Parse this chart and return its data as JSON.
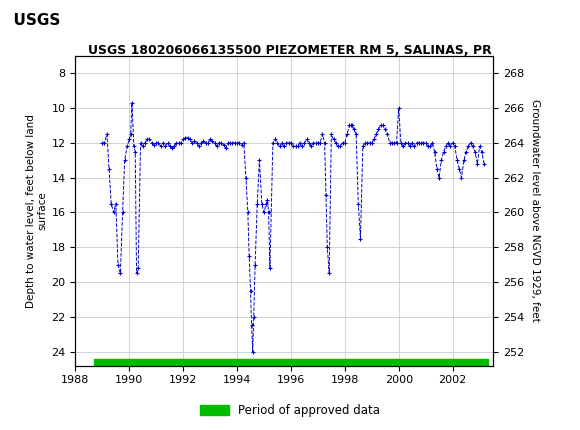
{
  "title": "USGS 180206066135500 PIEZOMETER RM 5, SALINAS, PR",
  "ylabel_left": "Depth to water level, feet below land\nsurface",
  "ylabel_right": "Groundwater level above NGVD 1929, feet",
  "xlim": [
    1988,
    2003.5
  ],
  "ylim_left": [
    24.8,
    7.0
  ],
  "ylim_right": [
    251.2,
    269.0
  ],
  "xticks": [
    1988,
    1990,
    1992,
    1994,
    1996,
    1998,
    2000,
    2002
  ],
  "yticks_left": [
    8,
    10,
    12,
    14,
    16,
    18,
    20,
    22,
    24
  ],
  "yticks_right": [
    268,
    266,
    264,
    262,
    260,
    258,
    256,
    254,
    252
  ],
  "header_color": "#1a6b3c",
  "grid_color": "#cccccc",
  "line_color": "#0000cc",
  "approved_bar_color": "#00bb00",
  "legend_label": "Period of approved data",
  "background_color": "#ffffff",
  "data_x": [
    1989.0,
    1989.08,
    1989.17,
    1989.25,
    1989.33,
    1989.42,
    1989.5,
    1989.58,
    1989.67,
    1989.75,
    1989.83,
    1989.92,
    1990.0,
    1990.05,
    1990.1,
    1990.17,
    1990.22,
    1990.27,
    1990.33,
    1990.42,
    1990.5,
    1990.58,
    1990.67,
    1990.75,
    1990.83,
    1990.92,
    1991.0,
    1991.08,
    1991.17,
    1991.25,
    1991.33,
    1991.42,
    1991.5,
    1991.58,
    1991.67,
    1991.75,
    1991.83,
    1991.92,
    1992.0,
    1992.08,
    1992.17,
    1992.25,
    1992.33,
    1992.42,
    1992.5,
    1992.58,
    1992.67,
    1992.75,
    1992.83,
    1992.92,
    1993.0,
    1993.08,
    1993.17,
    1993.25,
    1993.33,
    1993.42,
    1993.5,
    1993.58,
    1993.67,
    1993.75,
    1993.83,
    1993.92,
    1994.0,
    1994.08,
    1994.17,
    1994.25,
    1994.33,
    1994.4,
    1994.45,
    1994.5,
    1994.54,
    1994.58,
    1994.62,
    1994.67,
    1994.75,
    1994.83,
    1994.92,
    1995.0,
    1995.08,
    1995.13,
    1995.17,
    1995.22,
    1995.33,
    1995.42,
    1995.5,
    1995.58,
    1995.67,
    1995.75,
    1995.83,
    1995.92,
    1996.0,
    1996.08,
    1996.17,
    1996.25,
    1996.33,
    1996.42,
    1996.5,
    1996.58,
    1996.67,
    1996.75,
    1996.83,
    1996.92,
    1997.0,
    1997.08,
    1997.17,
    1997.25,
    1997.3,
    1997.35,
    1997.42,
    1997.5,
    1997.58,
    1997.67,
    1997.75,
    1997.83,
    1997.92,
    1998.0,
    1998.08,
    1998.17,
    1998.22,
    1998.27,
    1998.33,
    1998.42,
    1998.5,
    1998.58,
    1998.67,
    1998.75,
    1998.83,
    1998.92,
    1999.0,
    1999.08,
    1999.17,
    1999.25,
    1999.33,
    1999.42,
    1999.5,
    1999.58,
    1999.67,
    1999.75,
    1999.83,
    1999.92,
    2000.0,
    2000.08,
    2000.17,
    2000.25,
    2000.33,
    2000.42,
    2000.5,
    2000.58,
    2000.67,
    2000.75,
    2000.83,
    2000.92,
    2001.0,
    2001.08,
    2001.17,
    2001.25,
    2001.33,
    2001.42,
    2001.5,
    2001.58,
    2001.67,
    2001.75,
    2001.83,
    2001.92,
    2002.0,
    2002.08,
    2002.17,
    2002.25,
    2002.33,
    2002.42,
    2002.5,
    2002.58,
    2002.67,
    2002.75,
    2002.83,
    2002.92,
    2003.0,
    2003.08,
    2003.17
  ],
  "data_y": [
    12.0,
    12.0,
    11.5,
    13.5,
    15.5,
    16.0,
    15.5,
    19.0,
    19.5,
    16.0,
    13.0,
    12.2,
    11.8,
    11.5,
    9.7,
    12.2,
    12.5,
    19.5,
    19.2,
    12.0,
    12.2,
    12.0,
    11.8,
    11.8,
    12.0,
    12.1,
    12.0,
    12.0,
    12.2,
    12.0,
    12.2,
    12.0,
    12.2,
    12.3,
    12.2,
    12.0,
    12.0,
    12.0,
    11.8,
    11.7,
    11.7,
    11.8,
    12.0,
    11.9,
    12.0,
    12.2,
    12.0,
    11.9,
    12.0,
    12.0,
    11.8,
    11.9,
    12.0,
    12.2,
    12.0,
    12.0,
    12.1,
    12.3,
    12.0,
    12.0,
    12.0,
    12.0,
    12.0,
    12.0,
    12.1,
    12.0,
    14.0,
    16.0,
    18.5,
    20.5,
    22.5,
    24.0,
    22.0,
    19.0,
    15.5,
    13.0,
    15.5,
    16.0,
    15.5,
    15.3,
    16.0,
    19.2,
    12.0,
    11.8,
    12.0,
    12.2,
    12.0,
    12.2,
    12.0,
    12.0,
    12.0,
    12.2,
    12.2,
    12.2,
    12.0,
    12.2,
    12.0,
    11.8,
    12.0,
    12.2,
    12.0,
    12.0,
    12.0,
    12.0,
    11.5,
    12.0,
    15.0,
    18.0,
    19.5,
    11.5,
    11.8,
    12.0,
    12.2,
    12.2,
    12.0,
    12.0,
    11.5,
    11.0,
    11.0,
    11.0,
    11.2,
    11.5,
    15.5,
    17.5,
    12.2,
    12.0,
    12.0,
    12.0,
    12.0,
    11.8,
    11.5,
    11.2,
    11.0,
    11.0,
    11.2,
    11.5,
    12.0,
    12.0,
    12.0,
    12.0,
    10.0,
    12.0,
    12.2,
    12.0,
    12.0,
    12.2,
    12.0,
    12.2,
    12.0,
    12.0,
    12.0,
    12.0,
    12.0,
    12.2,
    12.2,
    12.0,
    12.5,
    13.5,
    14.0,
    13.0,
    12.5,
    12.2,
    12.0,
    12.2,
    12.0,
    12.2,
    13.0,
    13.5,
    14.0,
    13.0,
    12.5,
    12.2,
    12.0,
    12.2,
    12.5,
    13.2,
    12.2,
    12.5,
    13.2
  ]
}
